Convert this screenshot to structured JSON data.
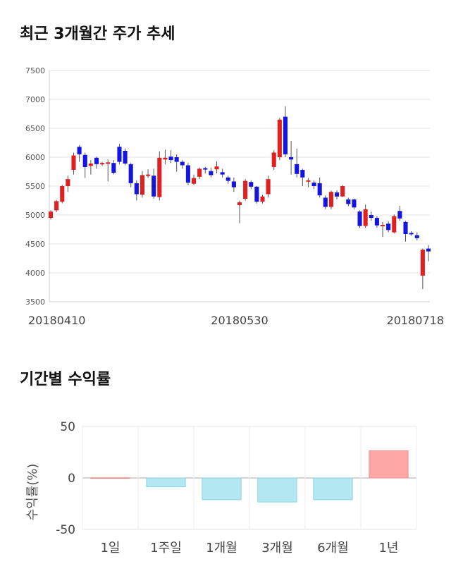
{
  "sections": {
    "price_title": "최근 3개월간 주가 추세",
    "returns_title": "기간별 수익률"
  },
  "chart_data": [
    {
      "type": "candlestick",
      "ylim": [
        3500,
        7500
      ],
      "yticks": [
        3500,
        4000,
        4500,
        5000,
        5500,
        6000,
        6500,
        7000,
        7500
      ],
      "xtick_labels": [
        {
          "index": 0,
          "label": "20180410"
        },
        {
          "index": 33,
          "label": "20180530"
        },
        {
          "index": 68,
          "label": "20180718"
        }
      ],
      "colors": {
        "up": "#e02020",
        "down": "#1515e0",
        "wick": "#555555"
      },
      "candles": [
        [
          4950,
          5060,
          4920,
          5080
        ],
        [
          5080,
          5240,
          5050,
          5260
        ],
        [
          5230,
          5500,
          5200,
          5520
        ],
        [
          5500,
          5620,
          5400,
          5680
        ],
        [
          5780,
          6030,
          5700,
          6080
        ],
        [
          6180,
          6050,
          5920,
          6210
        ],
        [
          6040,
          5830,
          5640,
          6080
        ],
        [
          5850,
          5890,
          5700,
          5950
        ],
        [
          5990,
          5880,
          5800,
          6010
        ],
        [
          5900,
          5900,
          5850,
          5920
        ],
        [
          5910,
          5910,
          5580,
          5960
        ],
        [
          5900,
          5730,
          5700,
          5950
        ],
        [
          6180,
          5920,
          5880,
          6230
        ],
        [
          6110,
          5890,
          5860,
          6150
        ],
        [
          5880,
          5550,
          5480,
          5900
        ],
        [
          5550,
          5360,
          5250,
          5600
        ],
        [
          5350,
          5690,
          5300,
          5760
        ],
        [
          5700,
          5700,
          5640,
          5790
        ],
        [
          5680,
          5320,
          5280,
          5800
        ],
        [
          5310,
          5990,
          5250,
          6100
        ],
        [
          5960,
          5990,
          5880,
          6130
        ],
        [
          6010,
          5950,
          5900,
          6120
        ],
        [
          6000,
          5920,
          5750,
          6050
        ],
        [
          5920,
          5860,
          5800,
          5950
        ],
        [
          5860,
          5560,
          5520,
          5900
        ],
        [
          5540,
          5640,
          5520,
          5700
        ],
        [
          5660,
          5800,
          5620,
          5820
        ],
        [
          5810,
          5800,
          5720,
          5830
        ],
        [
          5760,
          5690,
          5650,
          5820
        ],
        [
          5790,
          5840,
          5720,
          5930
        ],
        [
          5740,
          5700,
          5650,
          5800
        ],
        [
          5650,
          5590,
          5540,
          5680
        ],
        [
          5580,
          5480,
          5400,
          5650
        ],
        [
          5170,
          5220,
          4860,
          5250
        ],
        [
          5280,
          5590,
          5250,
          5620
        ],
        [
          5570,
          5490,
          5450,
          5600
        ],
        [
          5490,
          5230,
          5200,
          5500
        ],
        [
          5230,
          5320,
          5200,
          5350
        ],
        [
          5360,
          5620,
          5300,
          5680
        ],
        [
          5830,
          6080,
          5780,
          6120
        ],
        [
          6000,
          6650,
          5950,
          6680
        ],
        [
          6700,
          6050,
          6000,
          6880
        ],
        [
          6000,
          5960,
          5700,
          6280
        ],
        [
          5880,
          5710,
          5650,
          6150
        ],
        [
          5780,
          5650,
          5500,
          5800
        ],
        [
          5600,
          5600,
          5480,
          5640
        ],
        [
          5560,
          5500,
          5450,
          5600
        ],
        [
          5550,
          5340,
          5300,
          5650
        ],
        [
          5300,
          5140,
          5100,
          5340
        ],
        [
          5140,
          5400,
          5100,
          5420
        ],
        [
          5390,
          5320,
          5270,
          5430
        ],
        [
          5320,
          5500,
          5310,
          5520
        ],
        [
          5270,
          5190,
          5150,
          5300
        ],
        [
          5270,
          5130,
          5100,
          5280
        ],
        [
          5060,
          4810,
          4780,
          5080
        ],
        [
          4810,
          5100,
          4780,
          5180
        ],
        [
          5000,
          4950,
          4900,
          5060
        ],
        [
          4950,
          4820,
          4780,
          4980
        ],
        [
          4820,
          4830,
          4620,
          4880
        ],
        [
          4850,
          4740,
          4700,
          4890
        ],
        [
          4700,
          4980,
          4680,
          5010
        ],
        [
          5070,
          4940,
          4900,
          5160
        ],
        [
          4880,
          4670,
          4540,
          4900
        ],
        [
          4690,
          4680,
          4640,
          4720
        ],
        [
          4650,
          4600,
          4560,
          4700
        ],
        [
          3950,
          4400,
          3720,
          4420
        ],
        [
          4420,
          4370,
          4200,
          4480
        ]
      ]
    },
    {
      "type": "bar",
      "categories": [
        "1일",
        "1주일",
        "1개월",
        "3개월",
        "6개월",
        "1년"
      ],
      "values": [
        0.2,
        -8.7,
        -21.2,
        -23.4,
        -21.2,
        26.5
      ],
      "ylabel": "수익률(%)",
      "ylim": [
        -50,
        50
      ],
      "yticks": [
        -50,
        0,
        50
      ],
      "colors": {
        "positive": "#fca6a6",
        "negative": "#b3e8f3",
        "positive_edge": "#f08080",
        "negative_edge": "#80cce0"
      }
    }
  ]
}
